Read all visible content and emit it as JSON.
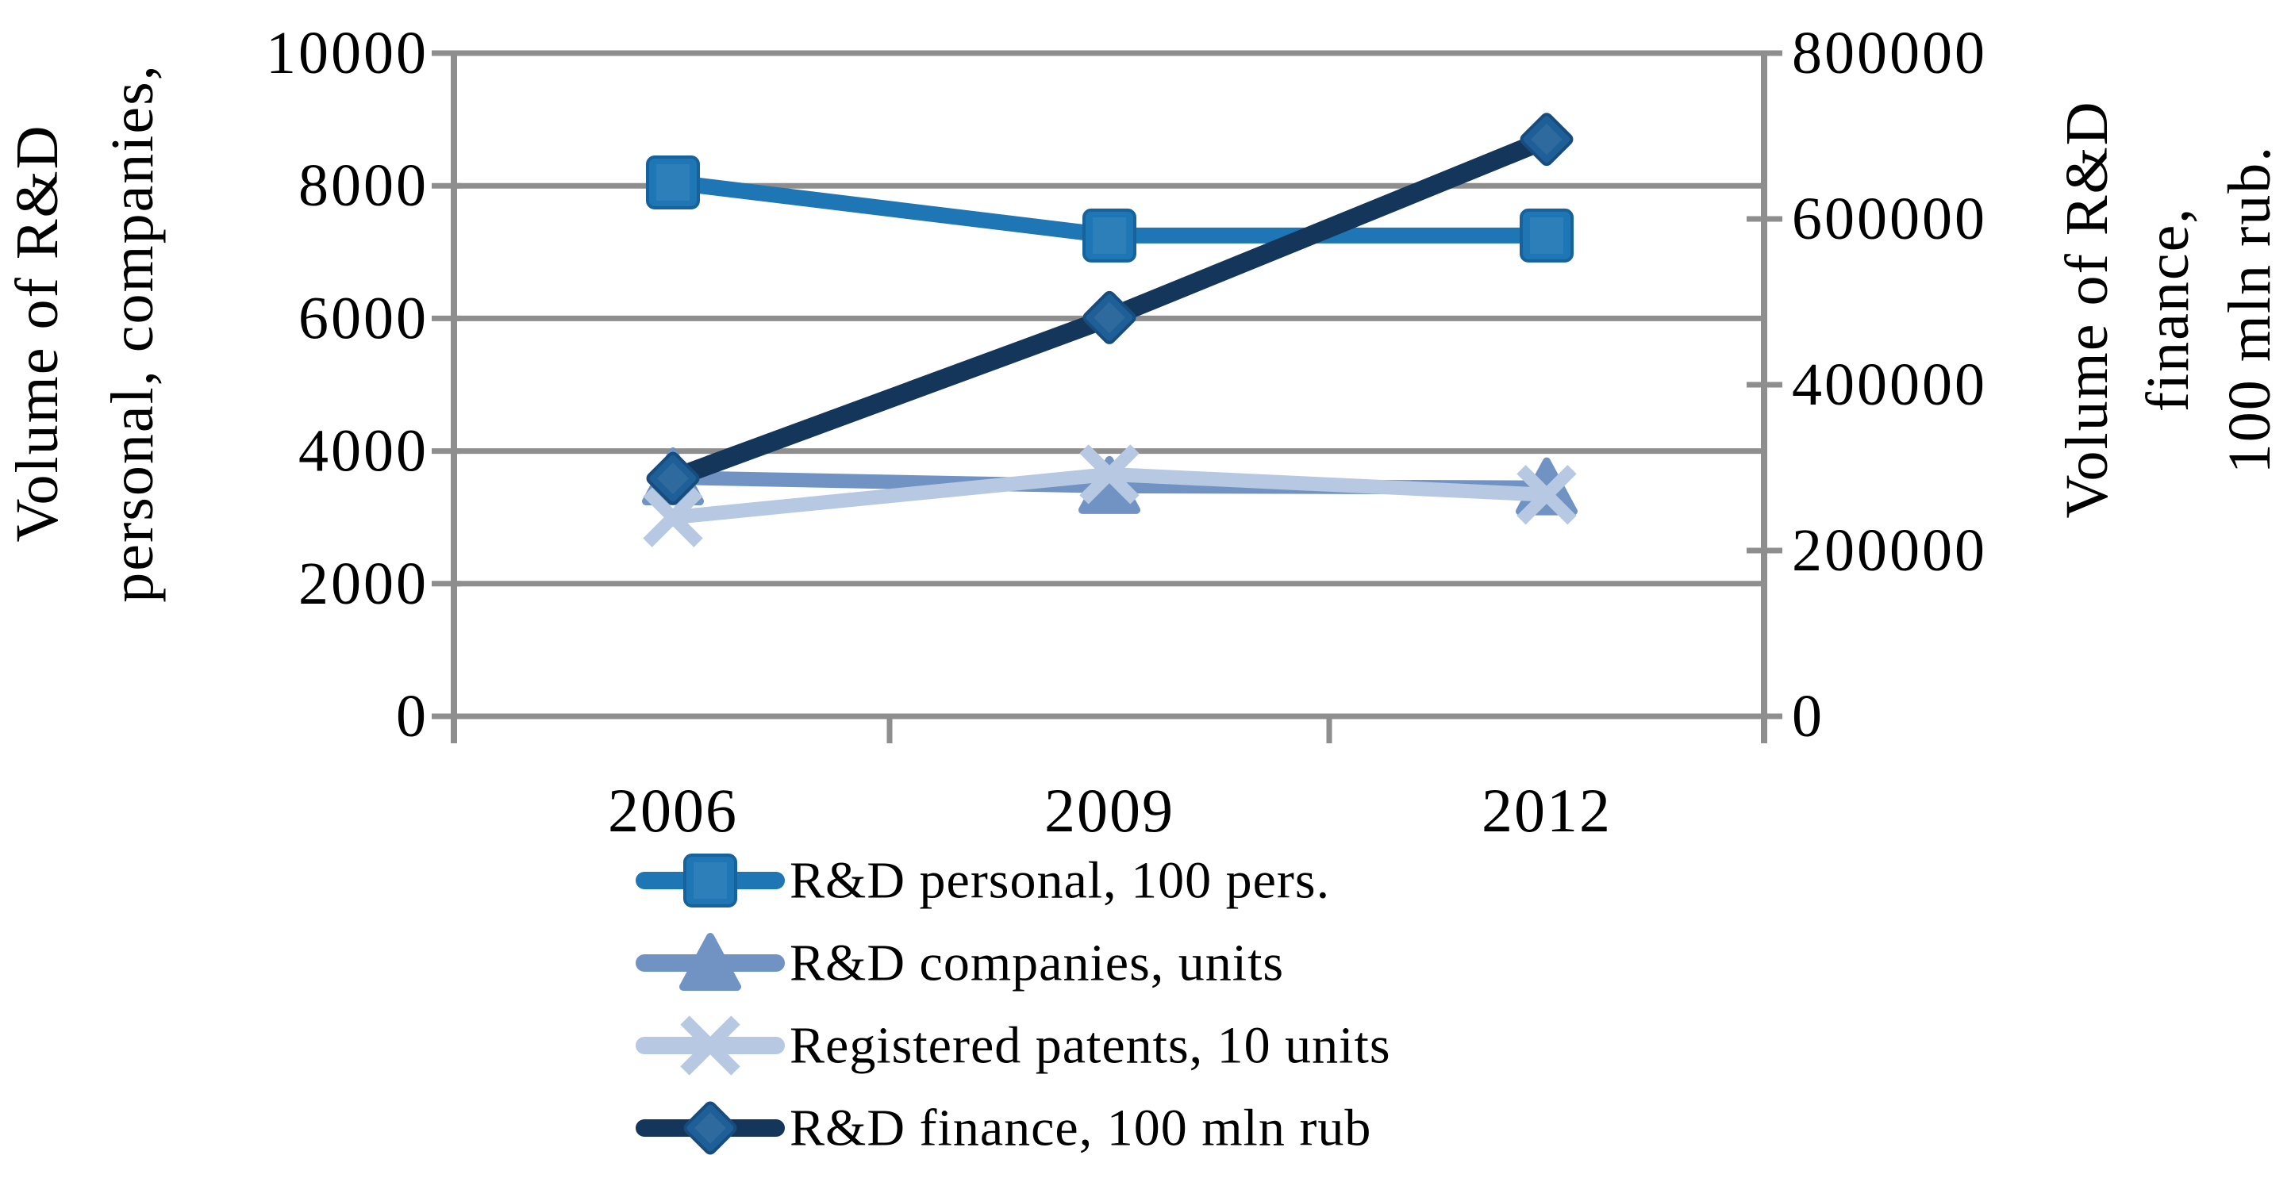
{
  "chart_data": {
    "type": "line",
    "title": "",
    "categories": [
      "2006",
      "2009",
      "2012"
    ],
    "series": [
      {
        "name": "R&D personal, 100 pers.",
        "axis": "left",
        "marker": "square",
        "color": "#1E76B4",
        "marker_fill": "#1E76B4",
        "values": [
          8050,
          7250,
          7250
        ]
      },
      {
        "name": "R&D companies, units",
        "axis": "left",
        "marker": "triangle",
        "color": "#7193C3",
        "marker_fill": "#7193C3",
        "values": [
          3600,
          3470,
          3450
        ]
      },
      {
        "name": "Registered patents, 10 units",
        "axis": "left",
        "marker": "x",
        "color": "#B6C8E2",
        "marker_fill": "#B6C8E2",
        "values": [
          3000,
          3650,
          3340
        ]
      },
      {
        "name": "R&D finance, 100 mln rub",
        "axis": "right",
        "marker": "diamond",
        "color": "#14365A",
        "marker_fill": "#1F5F97",
        "values": [
          287000,
          481000,
          696000
        ]
      }
    ],
    "left_axis": {
      "title": "Volume of R&D personal, companies,",
      "title_lines": [
        "Volume of R&D",
        "personal, companies,"
      ],
      "ticks": [
        0,
        2000,
        4000,
        6000,
        8000,
        10000
      ],
      "range": [
        0,
        10000
      ]
    },
    "right_axis": {
      "title": "Volume of R&D finance, 100 mln rub.",
      "title_lines": [
        "Volume of R&D",
        "finance,",
        "100 mln rub."
      ],
      "ticks": [
        0,
        200000,
        400000,
        600000,
        800000
      ],
      "range": [
        0,
        800000
      ]
    },
    "x_axis": {
      "labels": [
        "2006",
        "2009",
        "2012"
      ]
    },
    "legend": {
      "position": "bottom-left",
      "entries": [
        "R&D personal, 100 pers.",
        "R&D companies, units",
        "Registered patents, 10 units",
        "R&D finance, 100 mln rub"
      ]
    },
    "grid": true,
    "colors": {
      "gridline": "#8E8E8E",
      "axis": "#8E8E8E",
      "text": "#000000",
      "background": "#FFFFFF"
    }
  }
}
